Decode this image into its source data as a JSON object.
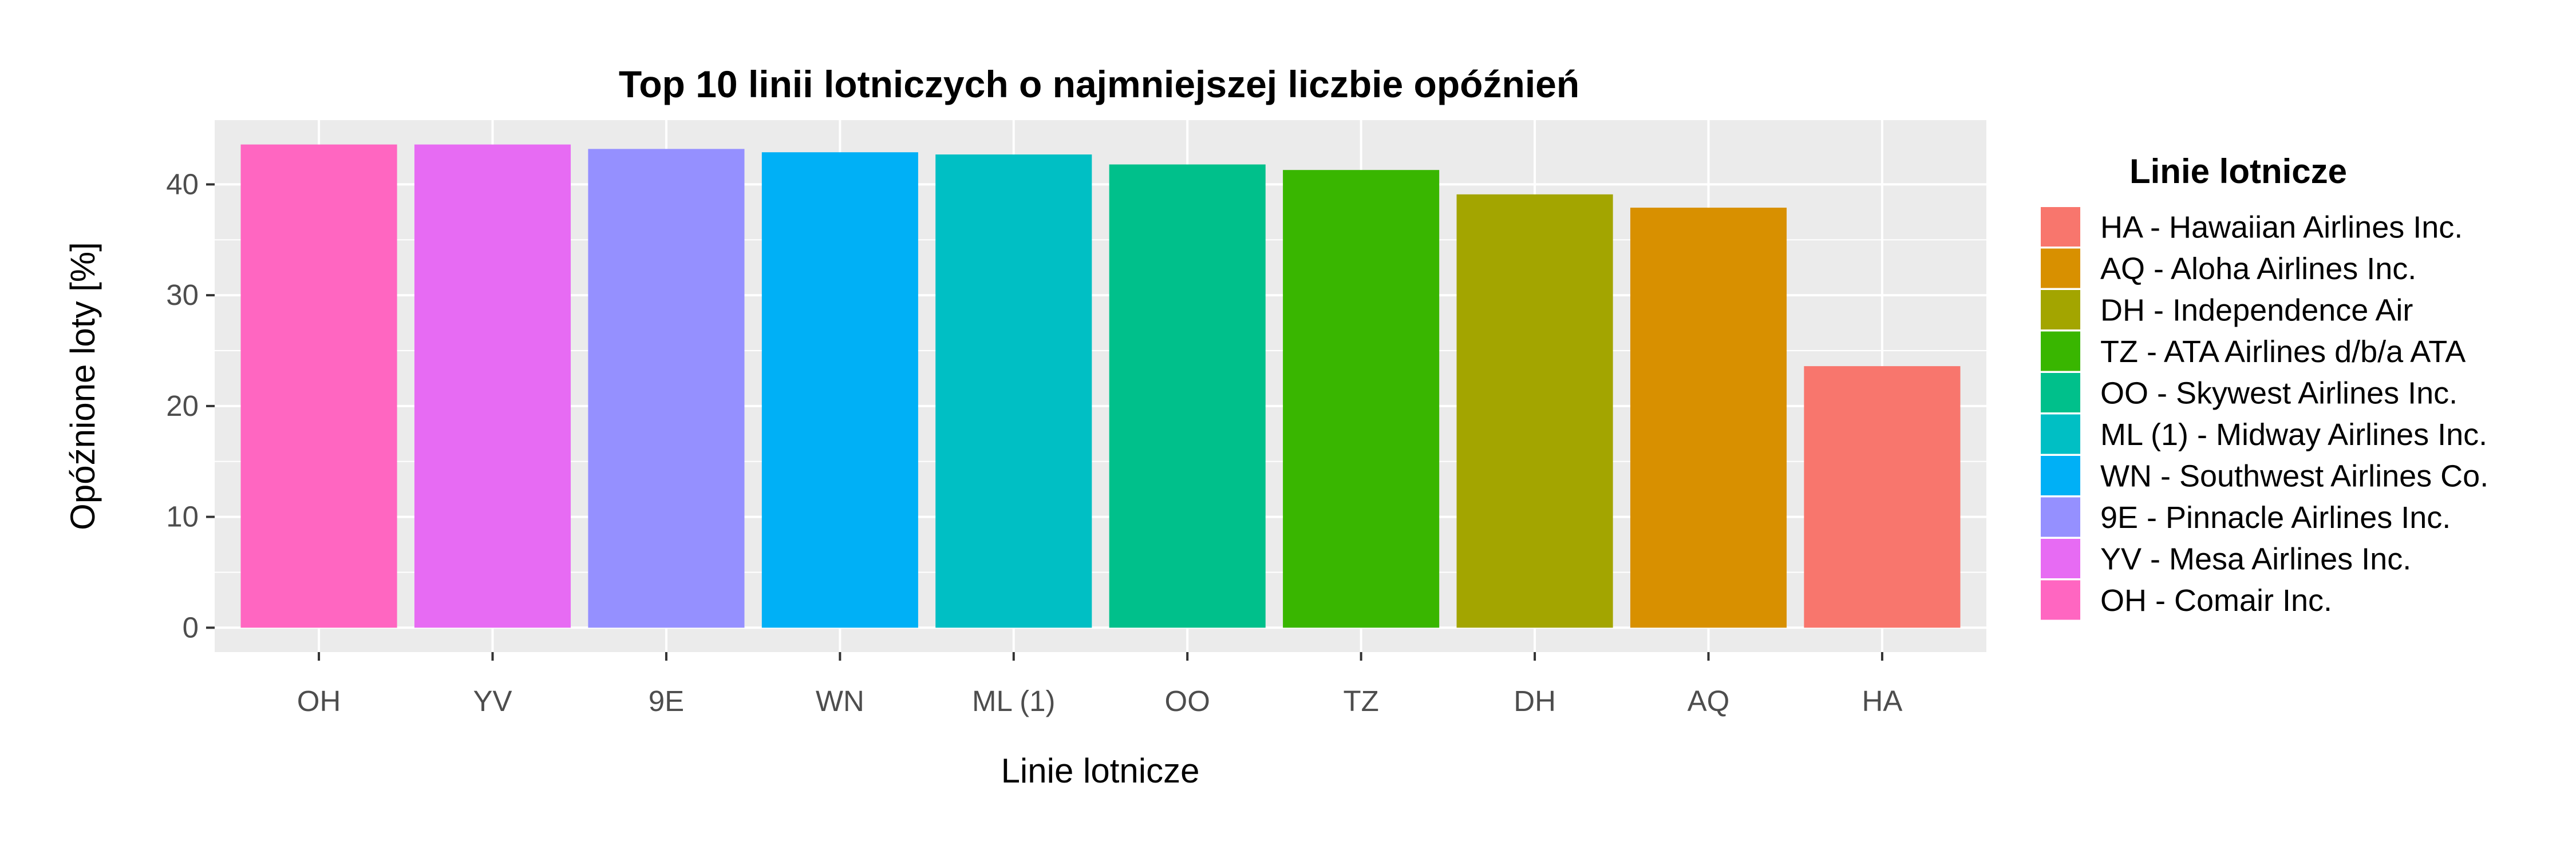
{
  "chart_data": {
    "type": "bar",
    "title": "Top 10 linii lotniczych o najmniejszej liczbie opóźnień",
    "xlabel": "Linie lotnicze",
    "ylabel": "Opóźnione loty [%]",
    "categories": [
      "OH",
      "YV",
      "9E",
      "WN",
      "ML (1)",
      "OO",
      "TZ",
      "DH",
      "AQ",
      "HA"
    ],
    "values": [
      43.6,
      43.6,
      43.2,
      42.9,
      42.7,
      41.8,
      41.3,
      39.1,
      37.9,
      23.6
    ],
    "colors": [
      "#FF66C1",
      "#E76BF3",
      "#9590FF",
      "#00B0F6",
      "#00BFC4",
      "#00C08B",
      "#39B600",
      "#A3A500",
      "#D89000",
      "#F8766D"
    ],
    "ylim": [
      -2.2,
      45.8
    ],
    "yticks": [
      0,
      10,
      20,
      30,
      40
    ],
    "grid": true,
    "legend_position": "right",
    "legend": {
      "title": "Linie lotnicze",
      "items": [
        {
          "label": "HA - Hawaiian Airlines Inc.",
          "color": "#F8766D"
        },
        {
          "label": "AQ - Aloha Airlines Inc.",
          "color": "#D89000"
        },
        {
          "label": "DH - Independence Air",
          "color": "#A3A500"
        },
        {
          "label": "TZ - ATA Airlines d/b/a ATA",
          "color": "#39B600"
        },
        {
          "label": "OO - Skywest Airlines Inc.",
          "color": "#00C08B"
        },
        {
          "label": "ML (1) - Midway Airlines Inc.",
          "color": "#00BFC4"
        },
        {
          "label": "WN - Southwest Airlines Co.",
          "color": "#00B0F6"
        },
        {
          "label": "9E - Pinnacle Airlines Inc.",
          "color": "#9590FF"
        },
        {
          "label": "YV - Mesa Airlines Inc.",
          "color": "#E76BF3"
        },
        {
          "label": "OH - Comair Inc.",
          "color": "#FF66C1"
        }
      ]
    }
  }
}
